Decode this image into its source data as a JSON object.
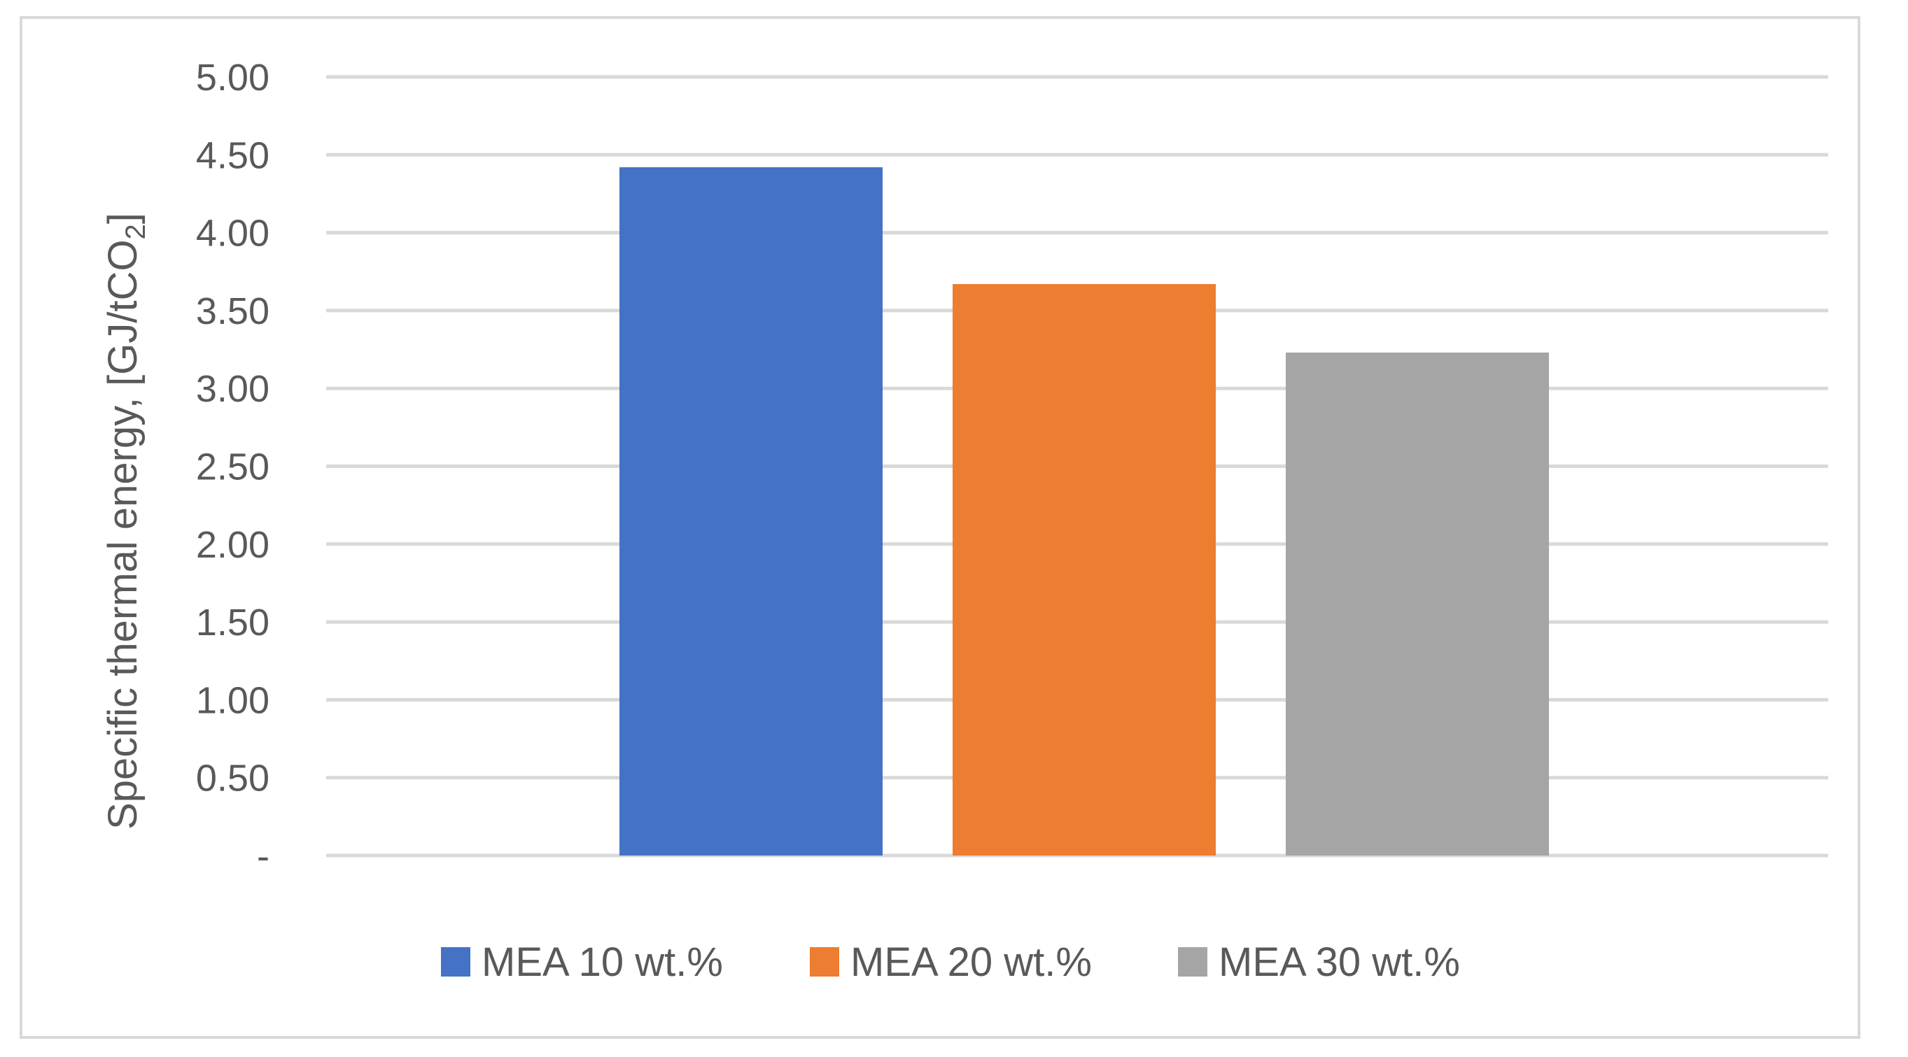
{
  "chart_data": {
    "type": "bar",
    "title": "",
    "xlabel": "",
    "ylabel": "Specific thermal energy, [GJ/tCO",
    "ylabel_subscript": "2",
    "ylabel_suffix": "]",
    "ylim": [
      0,
      5
    ],
    "yticks": [
      0,
      0.5,
      1,
      1.5,
      2,
      2.5,
      3,
      3.5,
      4,
      4.5,
      5
    ],
    "ytick_labels": [
      "-",
      "0.50",
      "1.00",
      "1.50",
      "2.00",
      "2.50",
      "3.00",
      "3.50",
      "4.00",
      "4.50",
      "5.00"
    ],
    "grid": true,
    "legend_position": "bottom",
    "categories": [
      ""
    ],
    "series": [
      {
        "name": "MEA 10 wt.%",
        "values": [
          4.42
        ],
        "color": "#4472C4"
      },
      {
        "name": "MEA 20 wt.%",
        "values": [
          3.67
        ],
        "color": "#ED7D31"
      },
      {
        "name": "MEA 30 wt.%",
        "values": [
          3.23
        ],
        "color": "#A5A5A5"
      }
    ]
  }
}
